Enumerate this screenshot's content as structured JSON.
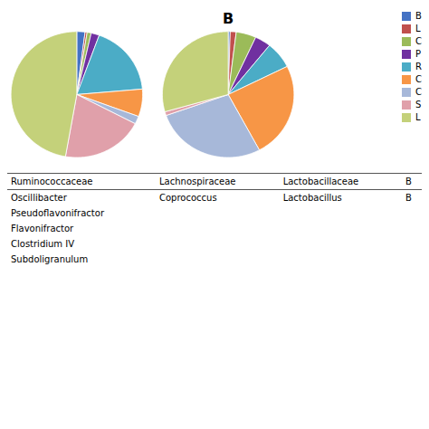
{
  "chart_data": [
    {
      "type": "pie",
      "categories": [
        "B",
        "L",
        "C",
        "P",
        "R",
        "C",
        "C",
        "S",
        "L"
      ],
      "values": [
        2,
        0.5,
        1,
        2,
        18,
        7,
        2,
        20,
        47
      ],
      "colors": [
        "#4472C4",
        "#C0504D",
        "#9BBB59",
        "#7030A0",
        "#4BACC6",
        "#F79646",
        "#A7B8D9",
        "#E0A0AA",
        "#C4D17A"
      ]
    },
    {
      "type": "pie",
      "title": "B",
      "categories": [
        "B",
        "L",
        "C",
        "P",
        "R",
        "C",
        "C",
        "S",
        "L"
      ],
      "values": [
        0.5,
        1.5,
        5,
        4,
        7,
        25,
        28,
        1,
        30
      ],
      "colors": [
        "#4472C4",
        "#C0504D",
        "#9BBB59",
        "#7030A0",
        "#4BACC6",
        "#F79646",
        "#A7B8D9",
        "#E0A0AA",
        "#C4D17A"
      ],
      "legend": "right"
    }
  ],
  "table": [
    {
      "header": "Ruminococcaceae",
      "rows": [
        "Oscillibacter",
        "Pseudoflavonifractor",
        "Flavonifractor",
        "Clostridium IV",
        "Subdoligranulum"
      ]
    },
    {
      "header": "Lachnospiraceae",
      "rows": [
        "Coprococcus"
      ]
    },
    {
      "header": "Lactobacillaceae",
      "rows": [
        "Lactobacillus"
      ]
    },
    {
      "header": "B",
      "rows": [
        "B"
      ]
    }
  ]
}
